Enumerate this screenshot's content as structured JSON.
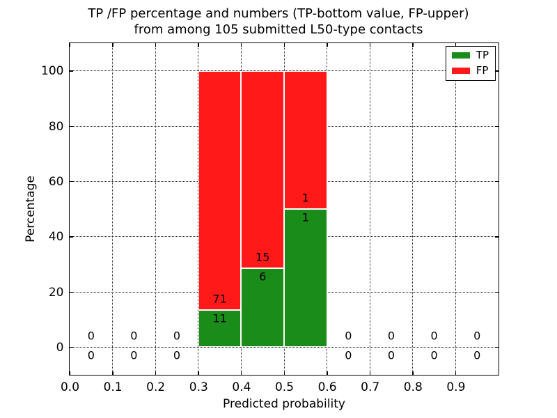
{
  "chart_data": {
    "type": "bar",
    "stacked": true,
    "title_line1": "TP /FP percentage and numbers (TP-bottom value, FP-upper)",
    "title_line2": "from among 105 submitted L50-type contacts",
    "xlabel": "Predicted probability",
    "ylabel": "Percentage",
    "xlim": [
      0.0,
      1.0
    ],
    "ylim": [
      -10,
      110
    ],
    "xticks": [
      0.0,
      0.1,
      0.2,
      0.3,
      0.4,
      0.5,
      0.6,
      0.7,
      0.8,
      0.9
    ],
    "xtick_labels": [
      "0.0",
      "0.1",
      "0.2",
      "0.3",
      "0.4",
      "0.5",
      "0.6",
      "0.7",
      "0.8",
      "0.9"
    ],
    "yticks": [
      0,
      20,
      40,
      60,
      80,
      100
    ],
    "ytick_labels": [
      "0",
      "20",
      "40",
      "60",
      "80",
      "100"
    ],
    "grid": true,
    "legend": {
      "position": "upper right",
      "entries": [
        {
          "label": "TP",
          "color": "#198c19"
        },
        {
          "label": "FP",
          "color": "#ff1919"
        }
      ]
    },
    "total_contacts": 105,
    "bins": [
      {
        "x0": 0.0,
        "x1": 0.1,
        "tp": 0,
        "fp": 0,
        "tp_pct": 0,
        "fp_pct": 0
      },
      {
        "x0": 0.1,
        "x1": 0.2,
        "tp": 0,
        "fp": 0,
        "tp_pct": 0,
        "fp_pct": 0
      },
      {
        "x0": 0.2,
        "x1": 0.3,
        "tp": 0,
        "fp": 0,
        "tp_pct": 0,
        "fp_pct": 0
      },
      {
        "x0": 0.3,
        "x1": 0.4,
        "tp": 11,
        "fp": 71,
        "tp_pct": 13.41,
        "fp_pct": 86.59
      },
      {
        "x0": 0.4,
        "x1": 0.5,
        "tp": 6,
        "fp": 15,
        "tp_pct": 28.57,
        "fp_pct": 71.43
      },
      {
        "x0": 0.5,
        "x1": 0.6,
        "tp": 1,
        "fp": 1,
        "tp_pct": 50.0,
        "fp_pct": 50.0
      },
      {
        "x0": 0.6,
        "x1": 0.7,
        "tp": 0,
        "fp": 0,
        "tp_pct": 0,
        "fp_pct": 0
      },
      {
        "x0": 0.7,
        "x1": 0.8,
        "tp": 0,
        "fp": 0,
        "tp_pct": 0,
        "fp_pct": 0
      },
      {
        "x0": 0.8,
        "x1": 0.9,
        "tp": 0,
        "fp": 0,
        "tp_pct": 0,
        "fp_pct": 0
      },
      {
        "x0": 0.9,
        "x1": 1.0,
        "tp": 0,
        "fp": 0,
        "tp_pct": 0,
        "fp_pct": 0
      }
    ]
  },
  "colors": {
    "tp": "#198c19",
    "fp": "#ff1919",
    "grid": "#222222",
    "spine": "#000000",
    "background": "#ffffff"
  }
}
